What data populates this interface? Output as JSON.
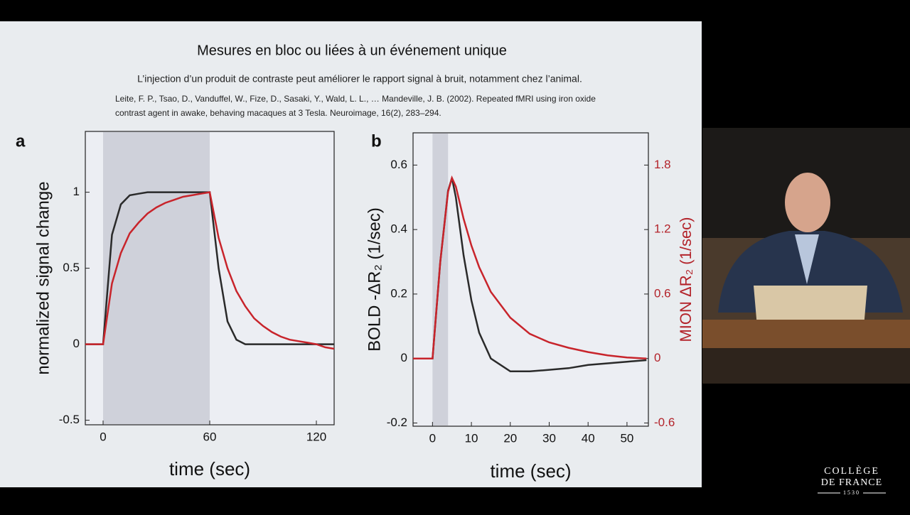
{
  "slide": {
    "title": "Mesures en bloc ou liées à un événement unique",
    "subtitle": "L’injection d’un produit de contraste peut améliorer le rapport signal à bruit, notamment chez l’animal.",
    "citation": [
      "Leite, F. P., Tsao, D., Vanduffel, W., Fize, D., Sasaki, Y., Wald, L. L., … Mandeville, J. B. (2002). Repeated fMRI using iron oxide",
      "contrast agent in awake, behaving macaques at 3 Tesla. Neuroimage, 16(2), 283–294."
    ]
  },
  "chart_data": [
    {
      "type": "line",
      "panel": "a",
      "xlabel": "time (sec)",
      "ylabel": "normalized signal change",
      "shade": [
        0,
        60
      ],
      "x": [
        -10,
        -5,
        0,
        5,
        10,
        15,
        20,
        25,
        30,
        35,
        40,
        45,
        50,
        55,
        60,
        65,
        70,
        75,
        80,
        85,
        90,
        95,
        100,
        105,
        110,
        115,
        120,
        125,
        130
      ],
      "xlim": [
        -10,
        130
      ],
      "xticks": [
        0,
        60,
        120
      ],
      "ylim": [
        -0.53,
        1.4
      ],
      "yticks": [
        -0.5,
        0,
        0.5,
        1
      ],
      "series": [
        {
          "color": "#2a2a2a",
          "values": [
            0,
            0,
            0,
            0.72,
            0.92,
            0.98,
            0.99,
            1,
            1,
            1,
            1,
            1,
            1,
            1,
            1,
            0.5,
            0.15,
            0.03,
            0,
            0,
            0,
            0,
            0,
            0,
            0,
            0,
            0,
            0,
            0
          ]
        },
        {
          "color": "#c8242b",
          "values": [
            0,
            0,
            0,
            0.4,
            0.6,
            0.73,
            0.8,
            0.86,
            0.9,
            0.93,
            0.95,
            0.97,
            0.98,
            0.99,
            1,
            0.7,
            0.5,
            0.35,
            0.25,
            0.17,
            0.12,
            0.08,
            0.05,
            0.03,
            0.02,
            0.01,
            0,
            -0.02,
            -0.03
          ]
        }
      ]
    },
    {
      "type": "line",
      "panel": "b",
      "xlabel": "time (sec)",
      "ylabel": "BOLD -ΔR₂ (1/sec)",
      "y2label": "MION  ΔR₂ (1/sec)",
      "shade": [
        0,
        4
      ],
      "x": [
        -5,
        0,
        2,
        4,
        5,
        6,
        8,
        10,
        12,
        15,
        20,
        25,
        30,
        35,
        40,
        45,
        50,
        55
      ],
      "xlim": [
        -5,
        55.5
      ],
      "xticks": [
        0,
        10,
        20,
        30,
        40,
        50
      ],
      "ylim": [
        -0.21,
        0.7
      ],
      "yticks": [
        -0.2,
        0,
        0.2,
        0.4,
        0.6
      ],
      "y2lim": [
        -0.63,
        2.1
      ],
      "y2ticks": [
        -0.6,
        0,
        0.6,
        1.2,
        1.8
      ],
      "y2color": "#b3232a",
      "series": [
        {
          "color": "#2a2a2a",
          "values": [
            0,
            0,
            0.3,
            0.52,
            0.56,
            0.5,
            0.32,
            0.18,
            0.08,
            0,
            -0.04,
            -0.04,
            -0.035,
            -0.03,
            -0.02,
            -0.015,
            -0.01,
            -0.005
          ]
        },
        {
          "color": "#c8242b",
          "axis": "y2",
          "values": [
            0,
            0,
            0.9,
            1.55,
            1.68,
            1.6,
            1.3,
            1.05,
            0.85,
            0.62,
            0.38,
            0.23,
            0.15,
            0.1,
            0.06,
            0.03,
            0.01,
            0
          ]
        }
      ]
    }
  ],
  "logo": [
    "COLLÈGE",
    "DE FRANCE",
    "1530"
  ]
}
